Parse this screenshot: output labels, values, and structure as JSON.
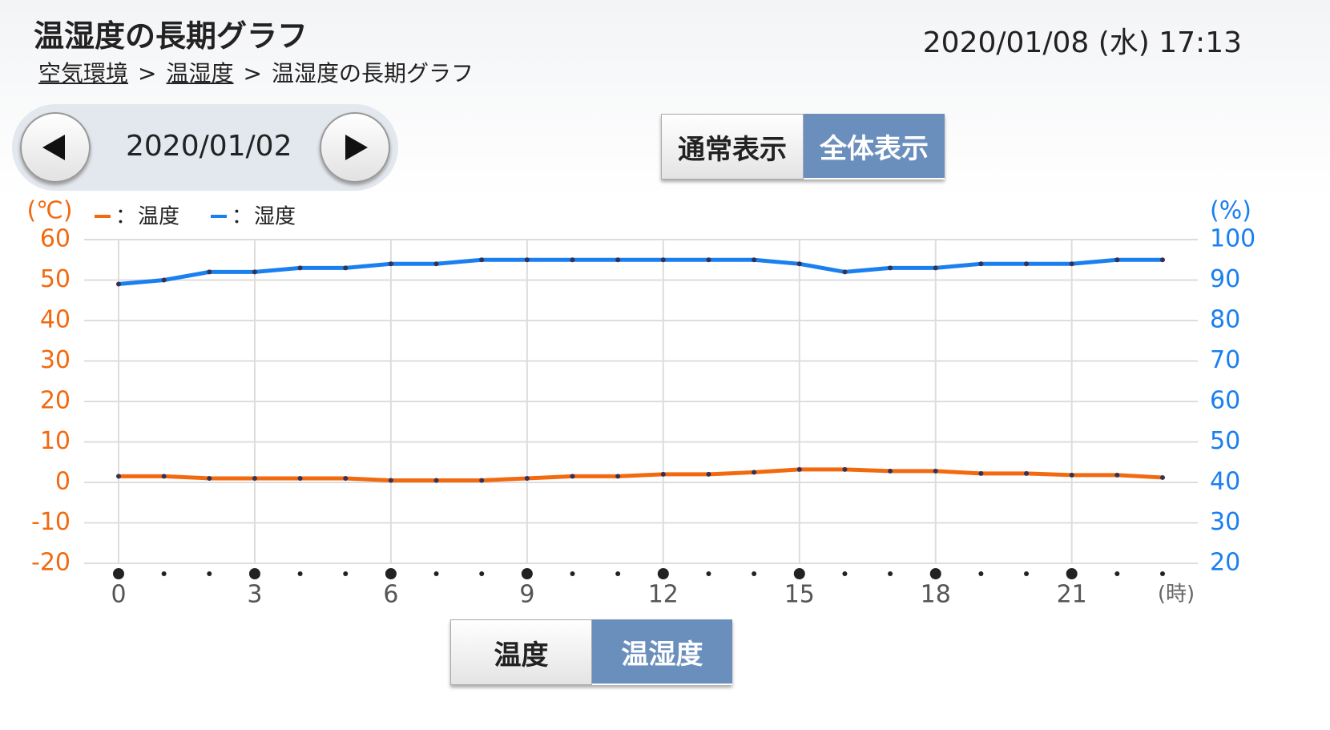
{
  "header": {
    "title": "温湿度の長期グラフ",
    "datetime": "2020/01/08 (水) 17:13",
    "breadcrumb": [
      "空気環境",
      ">",
      "温湿度",
      ">",
      "温湿度の長期グラフ"
    ]
  },
  "date_nav": {
    "date": "2020/01/02"
  },
  "view_toggle": [
    "通常表示",
    "全体表示"
  ],
  "mode_toggle": [
    "温度",
    "温湿度"
  ],
  "chart_data": {
    "type": "line",
    "y_label": "(℃)",
    "y2_label": "(%)",
    "x_label": "(時)",
    "legend_separator": "：",
    "x": [
      0,
      1,
      2,
      3,
      4,
      5,
      6,
      7,
      8,
      9,
      10,
      11,
      12,
      13,
      14,
      15,
      16,
      17,
      18,
      19,
      20,
      21,
      22,
      23
    ],
    "xlim": [
      0,
      23
    ],
    "xticks": [
      0,
      3,
      6,
      9,
      12,
      15,
      18,
      21
    ],
    "ylim": [
      -20,
      60
    ],
    "yticks": [
      -20,
      -10,
      0,
      10,
      20,
      30,
      40,
      50,
      60
    ],
    "y2lim": [
      20,
      100
    ],
    "y2ticks": [
      20,
      30,
      40,
      50,
      60,
      70,
      80,
      90,
      100
    ],
    "grid": true,
    "series": [
      {
        "name": "温度",
        "color": "#f26a10",
        "values": [
          1.5,
          1.5,
          1,
          1,
          1,
          1,
          0.5,
          0.5,
          0.5,
          1,
          1.5,
          1.5,
          2,
          2,
          2.5,
          3.2,
          3.2,
          2.8,
          2.8,
          2.2,
          2.2,
          1.8,
          1.8,
          1.2
        ]
      },
      {
        "name": "湿度",
        "color": "#1a7ff0",
        "axis": "y2",
        "values": [
          89,
          90,
          92,
          92,
          93,
          93,
          94,
          94,
          95,
          95,
          95,
          95,
          95,
          95,
          95,
          94,
          92,
          93,
          93,
          94,
          94,
          94,
          95,
          95
        ]
      }
    ]
  }
}
